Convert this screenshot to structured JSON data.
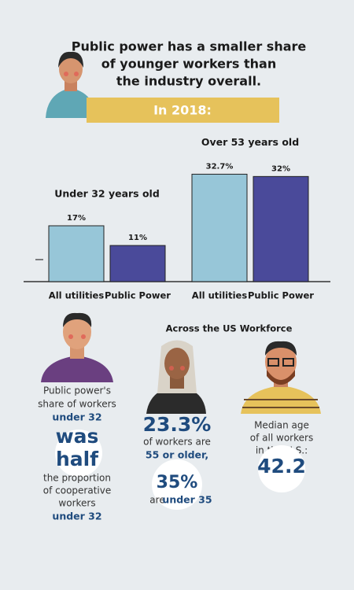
{
  "headline": [
    "Public power has a smaller share",
    "of younger workers than",
    "the industry overall."
  ],
  "banner": "In 2018:",
  "chart_data": {
    "type": "bar",
    "categories": [
      "Under 32 years old",
      "Over 53 years old"
    ],
    "series": [
      {
        "name": "All utilities",
        "color": "#97c6d8",
        "values": [
          17,
          32.7
        ],
        "value_labels": [
          "17%",
          "32.7%"
        ]
      },
      {
        "name": "Public Power",
        "color": "#4a4a9a",
        "values": [
          11,
          32
        ],
        "value_labels": [
          "11%",
          "32%"
        ]
      }
    ],
    "ylim": [
      0,
      34
    ]
  },
  "workforce": {
    "title": "Across the US Workforce",
    "left": [
      "Public power's",
      "share of workers",
      "under 32",
      "was",
      "half",
      "the proportion",
      "of cooperative",
      "workers",
      "under 32"
    ],
    "middle": {
      "stat1": "23.3%",
      "text1": "of workers are",
      "text2": "55 or older,",
      "stat2": "35%",
      "text3": "are",
      "text4": "under 35"
    },
    "right": [
      "Median age",
      "of all workers",
      "in the U.S.:",
      "42.2"
    ]
  }
}
